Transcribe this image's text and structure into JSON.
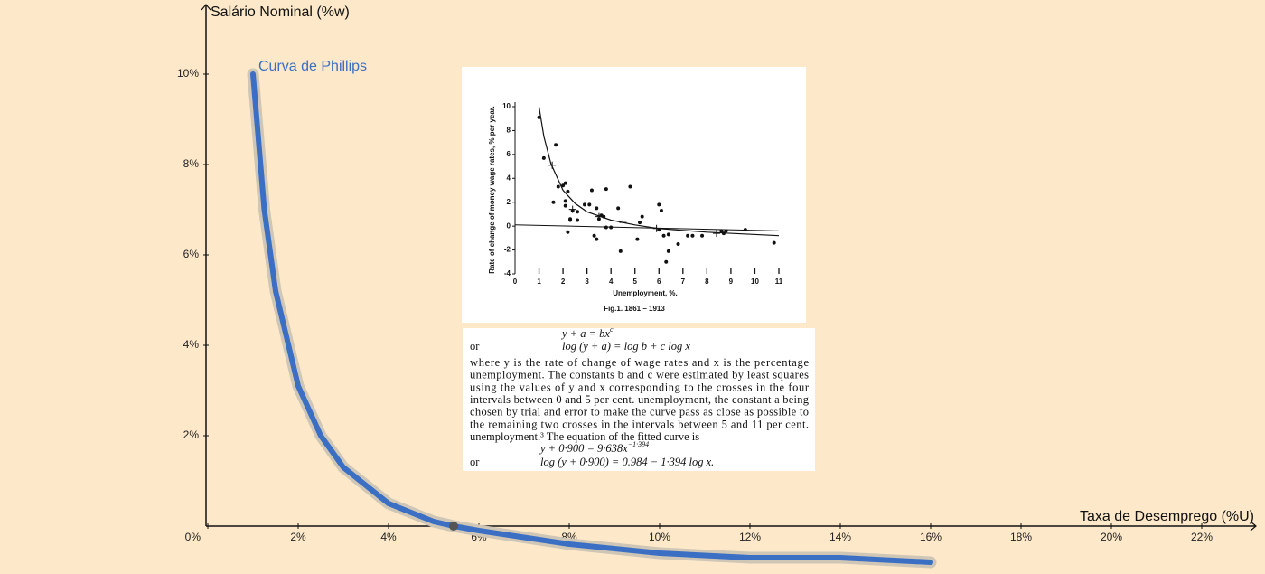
{
  "chart_data": [
    {
      "type": "line",
      "title": "Curva de Phillips",
      "y_label": "Salário Nominal (%w)",
      "x_label": "Taxa de Desemprego (%U)",
      "xlim": [
        0,
        23.2
      ],
      "ylim": [
        -1.0,
        11.5
      ],
      "xticks": [
        {
          "value": 0,
          "label": "0%"
        },
        {
          "value": 2,
          "label": "2%"
        },
        {
          "value": 4,
          "label": "4%"
        },
        {
          "value": 6,
          "label": "6%"
        },
        {
          "value": 8,
          "label": "8%"
        },
        {
          "value": 10,
          "label": "10%"
        },
        {
          "value": 12,
          "label": "12%"
        },
        {
          "value": 14,
          "label": "14%"
        },
        {
          "value": 16,
          "label": "16%"
        },
        {
          "value": 18,
          "label": "18%"
        },
        {
          "value": 20,
          "label": "20%"
        },
        {
          "value": 22,
          "label": "22%"
        }
      ],
      "yticks": [
        {
          "value": 2,
          "label": "2%"
        },
        {
          "value": 4,
          "label": "4%"
        },
        {
          "value": 6,
          "label": "6%"
        },
        {
          "value": 8,
          "label": "8%"
        },
        {
          "value": 10,
          "label": "10%"
        }
      ],
      "series": [
        {
          "name": "Curva de Phillips",
          "color": "#3a6fc4",
          "x": [
            1,
            1.25,
            1.5,
            2,
            2.5,
            3,
            4,
            5,
            5.44,
            6,
            8,
            10,
            12,
            14,
            16
          ],
          "values": [
            10,
            7.0,
            5.2,
            3.1,
            2.0,
            1.3,
            0.5,
            0.1,
            0,
            -0.1,
            -0.4,
            -0.6,
            -0.7,
            -0.7,
            -0.8
          ]
        }
      ],
      "marker": {
        "x": 5.44,
        "y": 0,
        "color": "#555555"
      }
    },
    {
      "type": "scatter",
      "x_label": "Unemployment, %.",
      "y_label": "Rate of change of money wage rates, % per year.",
      "caption": "Fig.1. 1861 – 1913",
      "xlim": [
        0,
        11
      ],
      "ylim": [
        -4,
        10
      ],
      "xticks": [
        0,
        1,
        2,
        3,
        4,
        5,
        6,
        7,
        8,
        9,
        10,
        11
      ],
      "yticks": [
        -4,
        -2,
        0,
        2,
        4,
        6,
        8,
        10
      ],
      "points": {
        "x": [
          1.0,
          1.2,
          1.7,
          1.8,
          1.6,
          2.0,
          2.1,
          2.2,
          2.1,
          2.1,
          2.2,
          2.3,
          2.4,
          2.6,
          2.3,
          2.6,
          2.9,
          3.2,
          3.1,
          3.4,
          3.3,
          3.4,
          3.5,
          3.6,
          3.7,
          3.8,
          3.8,
          4.0,
          4.3,
          4.4,
          4.8,
          5.1,
          5.2,
          5.3,
          6.0,
          6.1,
          6.0,
          6.2,
          6.3,
          6.4,
          6.4,
          6.8,
          7.2,
          7.4,
          7.8,
          8.6,
          8.7,
          8.8,
          9.6,
          10.8
        ],
        "y": [
          9.1,
          5.7,
          6.8,
          3.3,
          2.0,
          3.4,
          3.6,
          2.9,
          2.1,
          1.7,
          -0.5,
          0.6,
          1.3,
          1.2,
          0.5,
          0.5,
          1.8,
          3.0,
          1.8,
          1.5,
          -0.8,
          -1.1,
          0.6,
          0.9,
          0.8,
          3.1,
          -0.1,
          -0.1,
          1.5,
          -2.1,
          3.3,
          -1.1,
          0.3,
          0.8,
          1.8,
          1.3,
          -0.3,
          -0.8,
          -3.0,
          -2.1,
          -0.7,
          -1.5,
          -0.8,
          -0.8,
          -0.8,
          -0.4,
          -0.6,
          -0.4,
          -0.3,
          -1.4
        ]
      },
      "crosses": {
        "x": [
          1.55,
          2.4,
          3.5,
          4.5,
          5.9,
          8.4
        ],
        "y": [
          5.1,
          1.4,
          0.8,
          0.3,
          -0.2,
          -0.6
        ]
      },
      "curve": {
        "x": [
          1.0,
          1.2,
          1.5,
          2,
          2.5,
          3,
          4,
          5,
          6,
          8,
          11
        ],
        "y": [
          10,
          7.5,
          5.2,
          3.0,
          1.9,
          1.2,
          0.5,
          0.1,
          -0.2,
          -0.5,
          -0.8
        ]
      },
      "line": {
        "x": [
          0,
          11
        ],
        "y": [
          0.1,
          -0.4
        ]
      }
    }
  ],
  "document": {
    "equations": [
      {
        "prefix": "",
        "text": "y + a = bx",
        "sup": "c"
      },
      {
        "prefix": "or",
        "text": "log (y + a) = log b + c log x",
        "sup": ""
      },
      {
        "prefix": "",
        "text": "y + 0·900 = 9·638x",
        "sup": "−1·394"
      },
      {
        "prefix": "or",
        "text": "log (y + 0·900) = 0.984 − 1·394 log x.",
        "sup": ""
      }
    ],
    "paragraph": [
      "where y is the rate of change of wage rates and x is the percentage",
      "unemployment.   The constants b and c were estimated by least squares",
      "using the values of y and x corresponding to the crosses in the four",
      "intervals between 0 and 5 per cent. unemployment, the constant a being",
      "chosen by trial and error to make the curve pass as close as possible to",
      "the remaining two crosses in the intervals between 5 and 11 per cent.",
      "unemployment.³   The equation of the fitted curve is"
    ]
  }
}
